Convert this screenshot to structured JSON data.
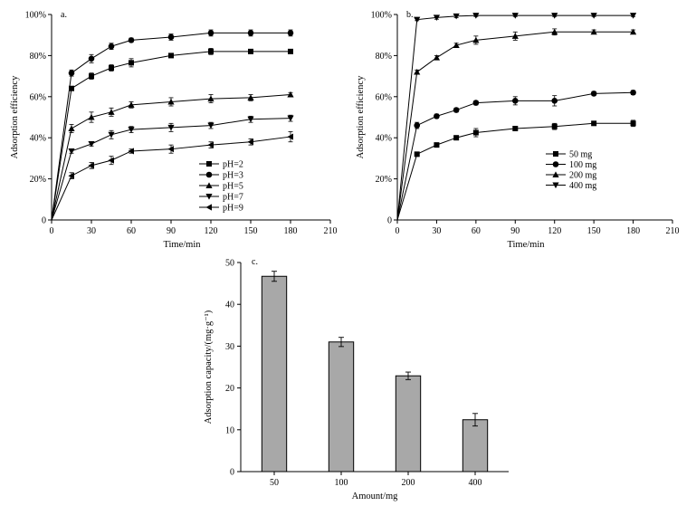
{
  "chart_data": [
    {
      "type": "line",
      "panel_label": "a.",
      "xlabel": "Time/min",
      "ylabel": "Adsorption efficiency",
      "xlim": [
        0,
        210
      ],
      "ylim": [
        0,
        100
      ],
      "xticks": [
        "0",
        "30",
        "60",
        "90",
        "120",
        "150",
        "180",
        "210"
      ],
      "yticks": [
        "0",
        "20%",
        "40%",
        "60%",
        "80%",
        "100%"
      ],
      "legend_position": "bottom-right",
      "x": [
        0,
        15,
        30,
        45,
        60,
        90,
        120,
        150,
        180
      ],
      "series": [
        {
          "name": "pH=2",
          "marker": "square",
          "values": [
            0,
            64,
            70,
            74,
            76.5,
            80,
            82,
            82,
            82
          ],
          "errors": [
            0,
            1,
            1.5,
            1.5,
            2,
            1,
            1.5,
            1,
            1
          ]
        },
        {
          "name": "pH=3",
          "marker": "circle",
          "values": [
            0,
            71.5,
            78.5,
            84.5,
            87.5,
            89,
            91,
            91,
            91
          ],
          "errors": [
            0,
            1.5,
            2,
            1.5,
            1,
            1.5,
            1.5,
            1.5,
            1.5
          ]
        },
        {
          "name": "pH=5",
          "marker": "triangle-up",
          "values": [
            0,
            44.5,
            50,
            52.5,
            56,
            57.5,
            59,
            59.5,
            61
          ],
          "errors": [
            0,
            2,
            2.5,
            2,
            1.5,
            2,
            2,
            1.5,
            1
          ]
        },
        {
          "name": "pH=7",
          "marker": "triangle-down",
          "values": [
            0,
            33.5,
            37,
            41.5,
            44,
            45,
            46,
            49,
            49.5
          ],
          "errors": [
            0,
            1,
            1,
            2,
            1.5,
            2,
            1.5,
            1.5,
            1.5
          ]
        },
        {
          "name": "pH=9",
          "marker": "triangle-left",
          "values": [
            0,
            21.5,
            26.5,
            29,
            33.5,
            34.5,
            36.5,
            38,
            40.5
          ],
          "errors": [
            0,
            1.5,
            1.5,
            2,
            1,
            2,
            1.5,
            1.5,
            2.5
          ]
        }
      ]
    },
    {
      "type": "line",
      "panel_label": "b.",
      "xlabel": "Time/min",
      "ylabel": "Adsorption efficiency",
      "xlim": [
        0,
        210
      ],
      "ylim": [
        0,
        100
      ],
      "xticks": [
        "0",
        "30",
        "60",
        "90",
        "120",
        "150",
        "180",
        "210"
      ],
      "yticks": [
        "0",
        "20%",
        "40%",
        "60%",
        "80%",
        "100%"
      ],
      "legend_position": "bottom-right",
      "x": [
        0,
        15,
        30,
        45,
        60,
        90,
        120,
        150,
        180
      ],
      "series": [
        {
          "name": "50 mg",
          "marker": "square",
          "values": [
            0,
            32,
            36.5,
            40,
            42.5,
            44.5,
            45.5,
            47,
            47
          ],
          "errors": [
            0,
            1,
            1,
            1,
            2,
            1,
            1.5,
            1,
            1.5
          ]
        },
        {
          "name": "100 mg",
          "marker": "circle",
          "values": [
            0,
            46,
            50.5,
            53.5,
            57,
            58,
            58,
            61.5,
            62
          ],
          "errors": [
            0,
            1.5,
            1,
            1,
            1,
            2,
            2.5,
            1,
            1
          ]
        },
        {
          "name": "200 mg",
          "marker": "triangle-up",
          "values": [
            0,
            72,
            79,
            85,
            87.5,
            89.5,
            91.5,
            91.5,
            91.5
          ],
          "errors": [
            0,
            1,
            1,
            1,
            2,
            2,
            1.5,
            1,
            1
          ]
        },
        {
          "name": "400 mg",
          "marker": "triangle-down",
          "values": [
            0,
            97.5,
            98.5,
            99.2,
            99.5,
            99.5,
            99.5,
            99.5,
            99.5
          ],
          "errors": [
            0,
            0.5,
            0.8,
            0.8,
            0.5,
            0.5,
            0.5,
            0.5,
            0.5
          ]
        }
      ]
    },
    {
      "type": "bar",
      "panel_label": "c.",
      "xlabel": "Amount/mg",
      "ylabel": "Adsorption capacity/(mg·g⁻¹)",
      "ylim": [
        0,
        50
      ],
      "yticks": [
        "0",
        "10",
        "20",
        "30",
        "40",
        "50"
      ],
      "categories": [
        "50",
        "100",
        "200",
        "400"
      ],
      "values": [
        46.7,
        31,
        22.9,
        12.4
      ],
      "errors": [
        1.2,
        1.1,
        0.9,
        1.5
      ]
    }
  ],
  "colors": {
    "axis": "#000000",
    "bar_fill": "#a8a8a8",
    "line": "#000000"
  }
}
